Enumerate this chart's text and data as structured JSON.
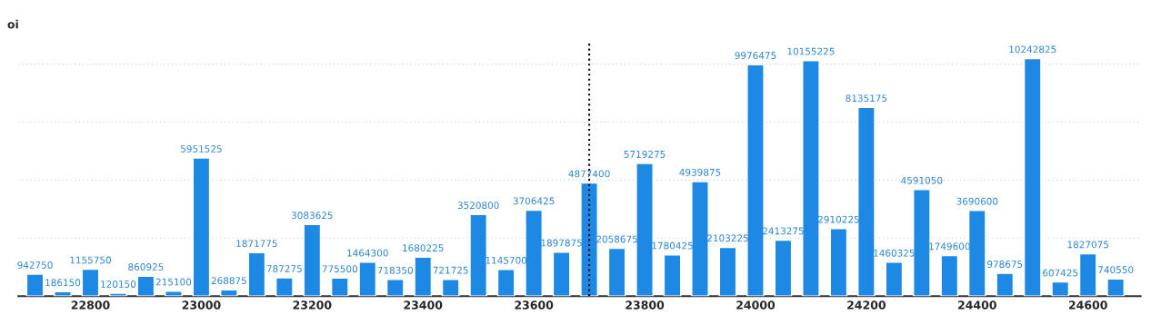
{
  "chart_data": {
    "type": "bar",
    "ylabel": "oi",
    "x": [
      22700,
      22750,
      22800,
      22850,
      22900,
      22950,
      23000,
      23050,
      23100,
      23150,
      23200,
      23250,
      23300,
      23350,
      23400,
      23450,
      23500,
      23550,
      23600,
      23650,
      23700,
      23750,
      23800,
      23850,
      23900,
      23950,
      24000,
      24050,
      24100,
      24150,
      24200,
      24250,
      24300,
      24350,
      24400,
      24450,
      24500,
      24550,
      24600,
      24650
    ],
    "series": [
      {
        "color": "#1e88e5",
        "values": [
          942750,
          186150,
          1155750,
          120150,
          860925,
          215100,
          5951525,
          268875,
          1871775,
          787275,
          3083625,
          775500,
          1464300,
          718350,
          1680225,
          721725,
          3520800,
          1145700,
          3706425,
          1897875,
          4877400,
          2058675,
          5719275,
          1780425,
          4939875,
          2103225,
          9976475,
          2413275,
          10155225,
          2910225,
          8135175,
          1460325,
          4591050,
          1749600,
          3690600,
          978675,
          10242825,
          607425,
          1827075,
          740550
        ]
      }
    ],
    "data_labels": true,
    "xlim": [
      22670,
      24695
    ],
    "xticks": [
      22800,
      23000,
      23200,
      23400,
      23600,
      23800,
      24000,
      24200,
      24400,
      24600
    ],
    "ylim": [
      0,
      11000000
    ],
    "yticks": [
      {
        "value": 2500000,
        "label": null
      },
      {
        "value": 5000000,
        "label": null
      },
      {
        "value": 7500000,
        "label": null
      },
      {
        "value": 10000000,
        "label": null
      }
    ],
    "tick_labels": "x",
    "grid": "y",
    "legend": false,
    "ref_lines": [
      {
        "axis": "x",
        "value": 23700,
        "color": "#000000",
        "line_style": "dotted"
      }
    ]
  }
}
